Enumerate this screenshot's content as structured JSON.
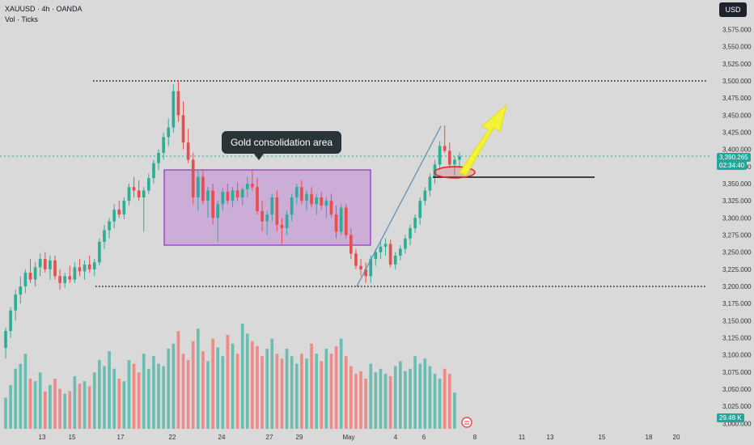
{
  "header": {
    "title": "XAUUSD · 4h · OANDA",
    "subtitle": "Vol · Ticks"
  },
  "currency_button": "USD",
  "price_label": "3,390.265",
  "countdown_label": "02:34:40",
  "volume_label": "29.48 K",
  "annotation": "Gold consolidation area",
  "colors": {
    "bull": "#2cad96",
    "bear": "#e84d4f",
    "vol_bull": "#6bbdb1",
    "vol_bear": "#ee8b89",
    "box_fill": "#c69ed6",
    "box_border": "#9b29c8",
    "arrow": "#f2f23a",
    "trendline": "#5b8db3",
    "price_line": "#26a69a"
  },
  "chart_data": {
    "type": "candlestick",
    "title": "XAUUSD · 4h · OANDA",
    "yaxis_ticks": [
      "3,575.000",
      "3,550.000",
      "3,525.000",
      "3,500.000",
      "3,475.000",
      "3,450.000",
      "3,425.000",
      "3,400.000",
      "3,375.000",
      "3,350.000",
      "3,325.000",
      "3,300.000",
      "3,275.000",
      "3,250.000",
      "3,225.000",
      "3,200.000",
      "3,175.000",
      "3,150.000",
      "3,125.000",
      "3,100.000",
      "3,075.000",
      "3,050.000",
      "3,025.000",
      "3,000.000"
    ],
    "xaxis_ticks": [
      "13",
      "15",
      "17",
      "22",
      "24",
      "27",
      "29",
      "May",
      "4",
      "6",
      "8",
      "11",
      "13",
      "15",
      "18",
      "20"
    ],
    "ylim": [
      3000,
      3590
    ],
    "resistance": 3500,
    "support": 3200,
    "neckline": 3360,
    "consolidation_box": {
      "top": 3368,
      "bottom": 3263
    },
    "last_price": 3390.265,
    "candles": [
      [
        3110,
        3140,
        3095,
        3135
      ],
      [
        3135,
        3170,
        3125,
        3165
      ],
      [
        3165,
        3195,
        3150,
        3188
      ],
      [
        3188,
        3215,
        3175,
        3200
      ],
      [
        3200,
        3225,
        3190,
        3220
      ],
      [
        3220,
        3240,
        3205,
        3210
      ],
      [
        3210,
        3235,
        3200,
        3228
      ],
      [
        3228,
        3248,
        3215,
        3240
      ],
      [
        3240,
        3250,
        3220,
        3225
      ],
      [
        3225,
        3245,
        3210,
        3238
      ],
      [
        3238,
        3245,
        3210,
        3215
      ],
      [
        3215,
        3225,
        3195,
        3205
      ],
      [
        3205,
        3220,
        3198,
        3215
      ],
      [
        3215,
        3230,
        3205,
        3210
      ],
      [
        3210,
        3235,
        3205,
        3228
      ],
      [
        3228,
        3240,
        3215,
        3222
      ],
      [
        3222,
        3238,
        3210,
        3232
      ],
      [
        3232,
        3245,
        3220,
        3225
      ],
      [
        3225,
        3240,
        3215,
        3235
      ],
      [
        3235,
        3270,
        3230,
        3265
      ],
      [
        3265,
        3290,
        3255,
        3282
      ],
      [
        3282,
        3300,
        3270,
        3295
      ],
      [
        3295,
        3320,
        3285,
        3312
      ],
      [
        3312,
        3325,
        3300,
        3305
      ],
      [
        3305,
        3330,
        3298,
        3325
      ],
      [
        3325,
        3350,
        3318,
        3345
      ],
      [
        3345,
        3360,
        3330,
        3340
      ],
      [
        3340,
        3355,
        3325,
        3330
      ],
      [
        3330,
        3345,
        3280,
        3340
      ],
      [
        3340,
        3365,
        3335,
        3358
      ],
      [
        3358,
        3385,
        3350,
        3380
      ],
      [
        3380,
        3400,
        3370,
        3395
      ],
      [
        3395,
        3425,
        3385,
        3418
      ],
      [
        3418,
        3445,
        3405,
        3432
      ],
      [
        3432,
        3495,
        3425,
        3485
      ],
      [
        3485,
        3500,
        3440,
        3450
      ],
      [
        3450,
        3470,
        3400,
        3410
      ],
      [
        3410,
        3430,
        3380,
        3385
      ],
      [
        3385,
        3395,
        3320,
        3330
      ],
      [
        3330,
        3370,
        3310,
        3360
      ],
      [
        3360,
        3370,
        3320,
        3325
      ],
      [
        3325,
        3345,
        3300,
        3340
      ],
      [
        3340,
        3350,
        3290,
        3300
      ],
      [
        3300,
        3325,
        3265,
        3320
      ],
      [
        3320,
        3345,
        3310,
        3338
      ],
      [
        3338,
        3350,
        3320,
        3325
      ],
      [
        3325,
        3345,
        3315,
        3340
      ],
      [
        3340,
        3352,
        3325,
        3330
      ],
      [
        3330,
        3345,
        3318,
        3342
      ],
      [
        3342,
        3360,
        3330,
        3350
      ],
      [
        3350,
        3370,
        3340,
        3345
      ],
      [
        3345,
        3358,
        3305,
        3310
      ],
      [
        3310,
        3325,
        3280,
        3295
      ],
      [
        3295,
        3310,
        3275,
        3305
      ],
      [
        3305,
        3335,
        3295,
        3330
      ],
      [
        3330,
        3340,
        3280,
        3290
      ],
      [
        3290,
        3300,
        3262,
        3285
      ],
      [
        3285,
        3310,
        3275,
        3305
      ],
      [
        3305,
        3335,
        3295,
        3330
      ],
      [
        3330,
        3350,
        3320,
        3345
      ],
      [
        3345,
        3355,
        3320,
        3325
      ],
      [
        3325,
        3340,
        3310,
        3335
      ],
      [
        3335,
        3345,
        3315,
        3320
      ],
      [
        3320,
        3335,
        3305,
        3330
      ],
      [
        3330,
        3338,
        3312,
        3318
      ],
      [
        3318,
        3330,
        3300,
        3325
      ],
      [
        3325,
        3335,
        3300,
        3305
      ],
      [
        3305,
        3318,
        3270,
        3280
      ],
      [
        3280,
        3320,
        3275,
        3315
      ],
      [
        3315,
        3320,
        3270,
        3275
      ],
      [
        3275,
        3285,
        3240,
        3248
      ],
      [
        3248,
        3255,
        3225,
        3230
      ],
      [
        3230,
        3240,
        3215,
        3225
      ],
      [
        3225,
        3235,
        3205,
        3215
      ],
      [
        3215,
        3245,
        3205,
        3240
      ],
      [
        3240,
        3255,
        3230,
        3250
      ],
      [
        3250,
        3265,
        3240,
        3258
      ],
      [
        3258,
        3270,
        3245,
        3262
      ],
      [
        3262,
        3268,
        3228,
        3232
      ],
      [
        3232,
        3250,
        3225,
        3245
      ],
      [
        3245,
        3260,
        3238,
        3255
      ],
      [
        3255,
        3275,
        3248,
        3270
      ],
      [
        3270,
        3290,
        3260,
        3285
      ],
      [
        3285,
        3305,
        3278,
        3300
      ],
      [
        3300,
        3330,
        3290,
        3325
      ],
      [
        3325,
        3345,
        3318,
        3340
      ],
      [
        3340,
        3365,
        3332,
        3360
      ],
      [
        3360,
        3385,
        3350,
        3378
      ],
      [
        3378,
        3412,
        3370,
        3405
      ],
      [
        3405,
        3435,
        3395,
        3398
      ],
      [
        3398,
        3410,
        3372,
        3378
      ],
      [
        3378,
        3390,
        3362,
        3385
      ],
      [
        3385,
        3395,
        3375,
        3390
      ]
    ],
    "volume_k": [
      25,
      35,
      48,
      52,
      60,
      40,
      38,
      45,
      30,
      35,
      40,
      32,
      28,
      30,
      42,
      36,
      38,
      34,
      45,
      55,
      50,
      62,
      48,
      40,
      38,
      55,
      52,
      45,
      60,
      48,
      58,
      52,
      50,
      64,
      68,
      78,
      60,
      55,
      70,
      80,
      62,
      54,
      72,
      65,
      58,
      75,
      68,
      60,
      84,
      76,
      70,
      66,
      58,
      64,
      72,
      60,
      56,
      64,
      58,
      52,
      60,
      56,
      68,
      60,
      54,
      64,
      60,
      66,
      72,
      58,
      50,
      44,
      46,
      40,
      52,
      45,
      48,
      44,
      42,
      50,
      54,
      46,
      48,
      58,
      52,
      56,
      50,
      44,
      40,
      48,
      44,
      29
    ]
  }
}
